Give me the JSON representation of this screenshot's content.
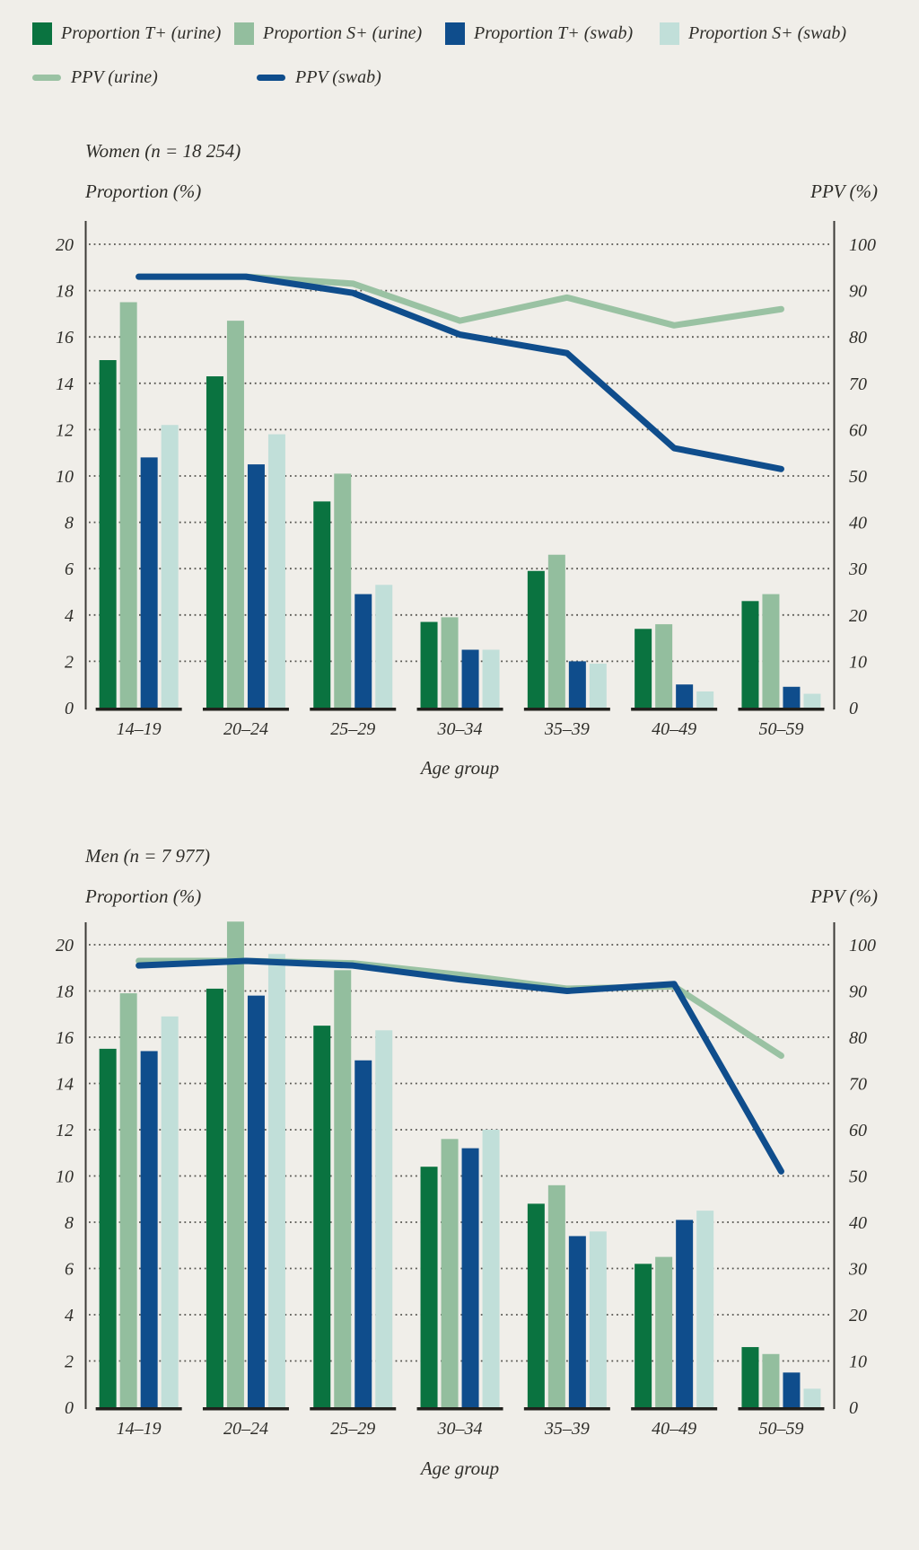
{
  "page": {
    "background": "#F0EEE9",
    "text_color": "#2F2E2A"
  },
  "legend": {
    "items": [
      {
        "label": "Proportion T+ (urine)",
        "color": "#0A7340",
        "type": "square"
      },
      {
        "label": "Proportion S+ (urine)",
        "color": "#93BE9E",
        "type": "square"
      },
      {
        "label": "Proportion T+ (swab)",
        "color": "#0F4D8C",
        "type": "square"
      },
      {
        "label": "Proportion S+ (swab)",
        "color": "#C1DFD9",
        "type": "square"
      },
      {
        "label": "PPV (urine)",
        "color": "#9AC2A3",
        "type": "line"
      },
      {
        "label": "PPV (swab)",
        "color": "#0F4D8C",
        "type": "line"
      }
    ]
  },
  "chart_data": [
    {
      "key": "women",
      "type": "bar+line",
      "title": "Women (n = 18 254)",
      "left_axis_label": "Proportion (%)",
      "right_axis_label": "PPV (%)",
      "xlabel": "Age group",
      "categories": [
        "14–19",
        "20–24",
        "25–29",
        "30–34",
        "35–39",
        "40–49",
        "50–59"
      ],
      "left_ylim": [
        0,
        20
      ],
      "right_ylim": [
        0,
        100
      ],
      "left_ticks": [
        0,
        2,
        4,
        6,
        8,
        10,
        12,
        14,
        16,
        18,
        20
      ],
      "right_ticks": [
        0,
        10,
        20,
        30,
        40,
        50,
        60,
        70,
        80,
        90,
        100
      ],
      "grid": "dotted-horizontal",
      "legend_position": "top",
      "bar_series": [
        {
          "key": "t_urine",
          "name": "Proportion T+ (urine)",
          "axis": "left",
          "color": "#0A7340",
          "values": [
            15.0,
            14.3,
            8.9,
            3.7,
            5.9,
            3.4,
            4.6
          ]
        },
        {
          "key": "s_urine",
          "name": "Proportion S+ (urine)",
          "axis": "left",
          "color": "#93BE9E",
          "values": [
            17.5,
            16.7,
            10.1,
            3.9,
            6.6,
            3.6,
            4.9
          ]
        },
        {
          "key": "t_swab",
          "name": "Proportion T+ (swab)",
          "axis": "left",
          "color": "#0F4D8C",
          "values": [
            10.8,
            10.5,
            4.9,
            2.5,
            2.0,
            1.0,
            0.9
          ]
        },
        {
          "key": "s_swab",
          "name": "Proportion S+ (swab)",
          "axis": "left",
          "color": "#C1DFD9",
          "values": [
            12.2,
            11.8,
            5.3,
            2.5,
            1.9,
            0.7,
            0.6
          ]
        }
      ],
      "line_series": [
        {
          "key": "ppv_urine",
          "name": "PPV (urine)",
          "axis": "right",
          "color": "#9AC2A3",
          "values": [
            93,
            93,
            91.5,
            83.5,
            88.5,
            82.5,
            86
          ]
        },
        {
          "key": "ppv_swab",
          "name": "PPV (swab)",
          "axis": "right",
          "color": "#0F4D8C",
          "values": [
            93,
            93,
            89.5,
            80.5,
            76.5,
            56,
            51.5
          ]
        }
      ]
    },
    {
      "key": "men",
      "type": "bar+line",
      "title": "Men (n = 7 977)",
      "left_axis_label": "Proportion (%)",
      "right_axis_label": "PPV (%)",
      "xlabel": "Age group",
      "categories": [
        "14–19",
        "20–24",
        "25–29",
        "30–34",
        "35–39",
        "40–49",
        "50–59"
      ],
      "left_ylim": [
        0,
        20
      ],
      "right_ylim": [
        0,
        100
      ],
      "left_ticks": [
        0,
        2,
        4,
        6,
        8,
        10,
        12,
        14,
        16,
        18,
        20
      ],
      "right_ticks": [
        0,
        10,
        20,
        30,
        40,
        50,
        60,
        70,
        80,
        90,
        100
      ],
      "grid": "dotted-horizontal",
      "legend_position": "top",
      "bar_series": [
        {
          "key": "t_urine",
          "name": "Proportion T+ (urine)",
          "axis": "left",
          "color": "#0A7340",
          "values": [
            15.5,
            18.1,
            16.5,
            10.4,
            8.8,
            6.2,
            2.6
          ]
        },
        {
          "key": "s_urine",
          "name": "Proportion S+ (urine)",
          "axis": "left",
          "color": "#93BE9E",
          "values": [
            17.9,
            21.0,
            18.9,
            11.6,
            9.6,
            6.5,
            2.3
          ]
        },
        {
          "key": "t_swab",
          "name": "Proportion T+ (swab)",
          "axis": "left",
          "color": "#0F4D8C",
          "values": [
            15.4,
            17.8,
            15.0,
            11.2,
            7.4,
            8.1,
            1.5
          ]
        },
        {
          "key": "s_swab",
          "name": "Proportion S+ (swab)",
          "axis": "left",
          "color": "#C1DFD9",
          "values": [
            16.9,
            19.6,
            16.3,
            12.0,
            7.6,
            8.5,
            0.8
          ]
        }
      ],
      "line_series": [
        {
          "key": "ppv_urine",
          "name": "PPV (urine)",
          "axis": "right",
          "color": "#9AC2A3",
          "values": [
            96.5,
            96.5,
            96,
            93.5,
            90.5,
            91,
            76
          ]
        },
        {
          "key": "ppv_swab",
          "name": "PPV (swab)",
          "axis": "right",
          "color": "#0F4D8C",
          "values": [
            95.5,
            96.5,
            95.5,
            92.5,
            90,
            91.5,
            51
          ]
        }
      ]
    }
  ]
}
